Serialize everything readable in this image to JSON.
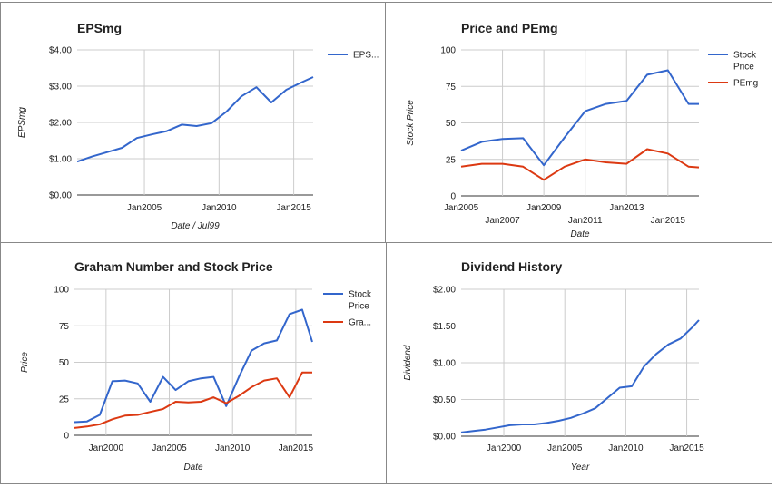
{
  "colors": {
    "blue": "#3366cc",
    "red": "#dc3912",
    "grid": "#cccccc",
    "border": "#888888"
  },
  "chart_data": [
    {
      "type": "line",
      "title": "EPSmg",
      "xlabel": "Date / Jul99",
      "ylabel": "EPSmg",
      "xlim": [
        2000.5,
        2016.3
      ],
      "ylim": [
        0,
        4
      ],
      "y_ticks": [
        0,
        1,
        2,
        3,
        4
      ],
      "y_tick_labels": [
        "$0.00",
        "$1.00",
        "$2.00",
        "$3.00",
        "$4.00"
      ],
      "x_ticks": [
        2005,
        2010,
        2015
      ],
      "x_tick_labels": [
        "Jan2005",
        "Jan2010",
        "Jan2015"
      ],
      "legend": "right",
      "series": [
        {
          "name": "EPS...",
          "color": "#3366cc",
          "x": [
            2000.5,
            2001.5,
            2002.5,
            2003.5,
            2004.5,
            2005.5,
            2006.5,
            2007.5,
            2008.5,
            2009.5,
            2010.5,
            2011.5,
            2012.5,
            2013.5,
            2014.5,
            2015.5,
            2016.3
          ],
          "values": [
            0.92,
            1.06,
            1.18,
            1.3,
            1.57,
            1.67,
            1.76,
            1.94,
            1.9,
            1.98,
            2.3,
            2.72,
            2.97,
            2.55,
            2.9,
            3.1,
            3.25
          ]
        }
      ]
    },
    {
      "type": "line",
      "title": "Price and PEmg",
      "xlabel": "Date",
      "ylabel": "Stock Price",
      "xlim": [
        2005,
        2016.5
      ],
      "ylim": [
        0,
        100
      ],
      "y_ticks": [
        0,
        25,
        50,
        75,
        100
      ],
      "y_tick_labels": [
        "0",
        "25",
        "50",
        "75",
        "100"
      ],
      "x_ticks": [
        2005,
        2007,
        2009,
        2011,
        2013,
        2015
      ],
      "x_tick_labels": [
        "Jan2005",
        "Jan2007",
        "Jan2009",
        "Jan2011",
        "Jan2013",
        "Jan2015"
      ],
      "legend": "right",
      "series": [
        {
          "name": "Stock Price",
          "color": "#3366cc",
          "x": [
            2005,
            2006,
            2007,
            2008,
            2009,
            2010,
            2011,
            2012,
            2013,
            2014,
            2015,
            2016,
            2016.5
          ],
          "values": [
            31,
            37,
            39,
            39.5,
            21,
            40,
            58,
            63,
            65,
            83,
            86,
            63,
            63
          ]
        },
        {
          "name": "PEmg",
          "color": "#dc3912",
          "x": [
            2005,
            2006,
            2007,
            2008,
            2009,
            2010,
            2011,
            2012,
            2013,
            2014,
            2015,
            2016,
            2016.5
          ],
          "values": [
            20,
            22,
            22,
            20,
            11,
            20,
            25,
            23,
            22,
            32,
            29,
            20,
            19.5
          ]
        }
      ]
    },
    {
      "type": "line",
      "title": "Graham Number and Stock Price",
      "xlabel": "Date",
      "ylabel": "Price",
      "xlim": [
        1997.5,
        2016.3
      ],
      "ylim": [
        0,
        100
      ],
      "y_ticks": [
        0,
        25,
        50,
        75,
        100
      ],
      "y_tick_labels": [
        "0",
        "25",
        "50",
        "75",
        "100"
      ],
      "x_ticks": [
        2000,
        2005,
        2010,
        2015
      ],
      "x_tick_labels": [
        "Jan2000",
        "Jan2005",
        "Jan2010",
        "Jan2015"
      ],
      "legend": "right",
      "series": [
        {
          "name": "Stock Price",
          "color": "#3366cc",
          "x": [
            1997.5,
            1998.5,
            1999.5,
            2000.5,
            2001.5,
            2002.5,
            2003.5,
            2004.5,
            2005.5,
            2006.5,
            2007.5,
            2008.5,
            2009.5,
            2010.5,
            2011.5,
            2012.5,
            2013.5,
            2014.5,
            2015.5,
            2016.3
          ],
          "values": [
            9,
            9.5,
            14,
            37,
            37.5,
            35.5,
            23,
            40,
            31,
            37,
            39,
            40,
            20,
            40,
            58,
            63,
            65,
            83,
            86,
            64
          ]
        },
        {
          "name": "Gra...",
          "color": "#dc3912",
          "x": [
            1997.5,
            1998.5,
            1999.5,
            2000.5,
            2001.5,
            2002.5,
            2003.5,
            2004.5,
            2005.5,
            2006.5,
            2007.5,
            2008.5,
            2009.5,
            2010.5,
            2011.5,
            2012.5,
            2013.5,
            2014.5,
            2015.5,
            2016.3
          ],
          "values": [
            5,
            6,
            7.5,
            11,
            13.5,
            14,
            16,
            18,
            23,
            22.5,
            23,
            26,
            22,
            27,
            33,
            37.5,
            39,
            26,
            43,
            43
          ]
        }
      ]
    },
    {
      "type": "line",
      "title": "Dividend History",
      "xlabel": "Year",
      "ylabel": "Dividend",
      "xlim": [
        1996.5,
        2016
      ],
      "ylim": [
        0,
        2
      ],
      "y_ticks": [
        0,
        0.5,
        1,
        1.5,
        2
      ],
      "y_tick_labels": [
        "$0.00",
        "$0.50",
        "$1.00",
        "$1.50",
        "$2.00"
      ],
      "x_ticks": [
        2000,
        2005,
        2010,
        2015
      ],
      "x_tick_labels": [
        "Jan2000",
        "Jan2005",
        "Jan2010",
        "Jan2015"
      ],
      "legend": "none",
      "series": [
        {
          "color": "#3366cc",
          "x": [
            1996.5,
            1997.5,
            1998.5,
            1999.5,
            2000.5,
            2001.5,
            2002.5,
            2003.5,
            2004.5,
            2005.5,
            2006.5,
            2007.5,
            2008.5,
            2009.5,
            2010.5,
            2011.5,
            2012.5,
            2013.5,
            2014.5,
            2015.5,
            2016
          ],
          "values": [
            0.05,
            0.07,
            0.09,
            0.12,
            0.15,
            0.16,
            0.16,
            0.18,
            0.21,
            0.25,
            0.31,
            0.38,
            0.52,
            0.66,
            0.68,
            0.95,
            1.12,
            1.25,
            1.33,
            1.49,
            1.58
          ]
        }
      ]
    }
  ]
}
